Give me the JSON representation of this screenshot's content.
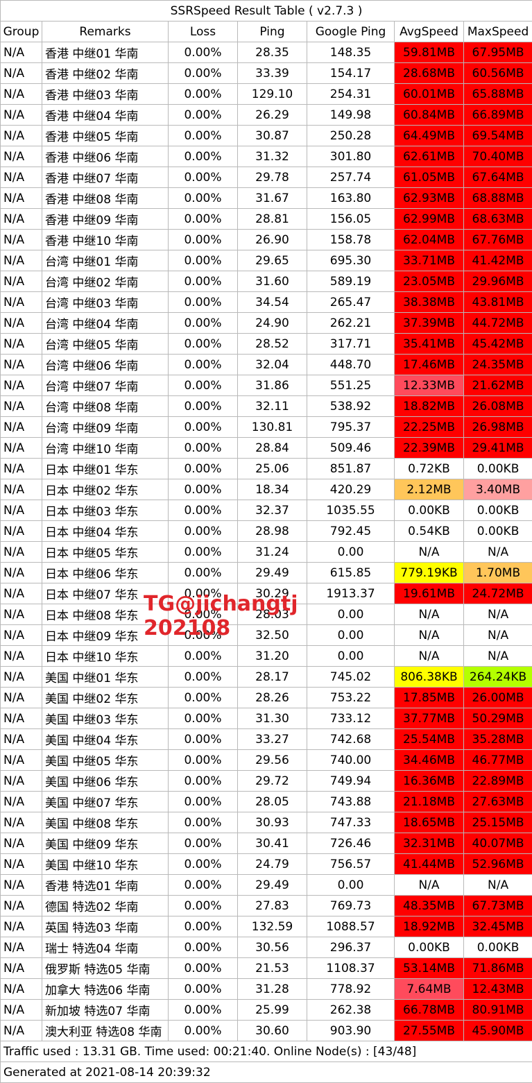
{
  "title": "SSRSpeed Result Table ( v2.7.3 )",
  "headers": [
    "Group",
    "Remarks",
    "Loss",
    "Ping",
    "Google Ping",
    "AvgSpeed",
    "MaxSpeed"
  ],
  "colors": {
    "fast_red": "#ff0000",
    "pink_red": "#ff4b5c",
    "salmon": "#ffa0a0",
    "orange": "#ffc65a",
    "yellow": "#ffff00",
    "lime": "#b4ff00",
    "watermark": "#e0262b",
    "border": "#b9b9b9"
  },
  "rows": [
    {
      "group": "N/A",
      "remarks": "香港 中继01 华南",
      "loss": "0.00%",
      "ping": "28.35",
      "gping": "148.35",
      "avg": "59.81MB",
      "avg_color": "#ff0000",
      "max": "67.95MB",
      "max_color": "#ff0000"
    },
    {
      "group": "N/A",
      "remarks": "香港 中继02 华南",
      "loss": "0.00%",
      "ping": "33.39",
      "gping": "154.17",
      "avg": "28.68MB",
      "avg_color": "#ff0000",
      "max": "60.56MB",
      "max_color": "#ff0000"
    },
    {
      "group": "N/A",
      "remarks": "香港 中继03 华南",
      "loss": "0.00%",
      "ping": "129.10",
      "gping": "254.31",
      "avg": "60.01MB",
      "avg_color": "#ff0000",
      "max": "65.88MB",
      "max_color": "#ff0000"
    },
    {
      "group": "N/A",
      "remarks": "香港 中继04 华南",
      "loss": "0.00%",
      "ping": "26.29",
      "gping": "149.98",
      "avg": "60.84MB",
      "avg_color": "#ff0000",
      "max": "66.89MB",
      "max_color": "#ff0000"
    },
    {
      "group": "N/A",
      "remarks": "香港 中继05 华南",
      "loss": "0.00%",
      "ping": "30.87",
      "gping": "250.28",
      "avg": "64.49MB",
      "avg_color": "#ff0000",
      "max": "69.54MB",
      "max_color": "#ff0000"
    },
    {
      "group": "N/A",
      "remarks": "香港 中继06 华南",
      "loss": "0.00%",
      "ping": "31.32",
      "gping": "301.80",
      "avg": "62.61MB",
      "avg_color": "#ff0000",
      "max": "70.40MB",
      "max_color": "#ff0000"
    },
    {
      "group": "N/A",
      "remarks": "香港 中继07 华南",
      "loss": "0.00%",
      "ping": "29.78",
      "gping": "257.74",
      "avg": "61.05MB",
      "avg_color": "#ff0000",
      "max": "67.64MB",
      "max_color": "#ff0000"
    },
    {
      "group": "N/A",
      "remarks": "香港 中继08 华南",
      "loss": "0.00%",
      "ping": "31.67",
      "gping": "163.80",
      "avg": "62.93MB",
      "avg_color": "#ff0000",
      "max": "68.88MB",
      "max_color": "#ff0000"
    },
    {
      "group": "N/A",
      "remarks": "香港 中继09 华南",
      "loss": "0.00%",
      "ping": "28.81",
      "gping": "156.05",
      "avg": "62.99MB",
      "avg_color": "#ff0000",
      "max": "68.63MB",
      "max_color": "#ff0000"
    },
    {
      "group": "N/A",
      "remarks": "香港 中继10 华南",
      "loss": "0.00%",
      "ping": "26.90",
      "gping": "158.78",
      "avg": "62.04MB",
      "avg_color": "#ff0000",
      "max": "67.76MB",
      "max_color": "#ff0000"
    },
    {
      "group": "N/A",
      "remarks": "台湾 中继01 华南",
      "loss": "0.00%",
      "ping": "29.65",
      "gping": "695.30",
      "avg": "33.71MB",
      "avg_color": "#ff0000",
      "max": "41.42MB",
      "max_color": "#ff0000"
    },
    {
      "group": "N/A",
      "remarks": "台湾 中继02 华南",
      "loss": "0.00%",
      "ping": "31.60",
      "gping": "589.19",
      "avg": "23.05MB",
      "avg_color": "#ff0000",
      "max": "29.96MB",
      "max_color": "#ff0000"
    },
    {
      "group": "N/A",
      "remarks": "台湾 中继03 华南",
      "loss": "0.00%",
      "ping": "34.54",
      "gping": "265.47",
      "avg": "38.38MB",
      "avg_color": "#ff0000",
      "max": "43.81MB",
      "max_color": "#ff0000"
    },
    {
      "group": "N/A",
      "remarks": "台湾 中继04 华南",
      "loss": "0.00%",
      "ping": "24.90",
      "gping": "262.21",
      "avg": "37.39MB",
      "avg_color": "#ff0000",
      "max": "44.72MB",
      "max_color": "#ff0000"
    },
    {
      "group": "N/A",
      "remarks": "台湾 中继05 华南",
      "loss": "0.00%",
      "ping": "28.52",
      "gping": "317.71",
      "avg": "35.41MB",
      "avg_color": "#ff0000",
      "max": "45.42MB",
      "max_color": "#ff0000"
    },
    {
      "group": "N/A",
      "remarks": "台湾 中继06 华南",
      "loss": "0.00%",
      "ping": "32.04",
      "gping": "448.70",
      "avg": "17.46MB",
      "avg_color": "#ff0000",
      "max": "24.35MB",
      "max_color": "#ff0000"
    },
    {
      "group": "N/A",
      "remarks": "台湾 中继07 华南",
      "loss": "0.00%",
      "ping": "31.86",
      "gping": "551.25",
      "avg": "12.33MB",
      "avg_color": "#ff4b5c",
      "max": "21.62MB",
      "max_color": "#ff0000"
    },
    {
      "group": "N/A",
      "remarks": "台湾 中继08 华南",
      "loss": "0.00%",
      "ping": "32.11",
      "gping": "538.92",
      "avg": "18.82MB",
      "avg_color": "#ff0000",
      "max": "26.08MB",
      "max_color": "#ff0000"
    },
    {
      "group": "N/A",
      "remarks": "台湾 中继09 华南",
      "loss": "0.00%",
      "ping": "130.81",
      "gping": "795.37",
      "avg": "22.25MB",
      "avg_color": "#ff0000",
      "max": "26.98MB",
      "max_color": "#ff0000"
    },
    {
      "group": "N/A",
      "remarks": "台湾 中继10 华南",
      "loss": "0.00%",
      "ping": "28.84",
      "gping": "509.46",
      "avg": "22.39MB",
      "avg_color": "#ff0000",
      "max": "29.41MB",
      "max_color": "#ff0000"
    },
    {
      "group": "N/A",
      "remarks": "日本 中继01 华东",
      "loss": "0.00%",
      "ping": "25.06",
      "gping": "851.87",
      "avg": "0.72KB",
      "avg_color": "",
      "max": "0.00KB",
      "max_color": ""
    },
    {
      "group": "N/A",
      "remarks": "日本 中继02 华东",
      "loss": "0.00%",
      "ping": "18.34",
      "gping": "420.29",
      "avg": "2.12MB",
      "avg_color": "#ffc65a",
      "max": "3.40MB",
      "max_color": "#ffa0a0"
    },
    {
      "group": "N/A",
      "remarks": "日本 中继03 华东",
      "loss": "0.00%",
      "ping": "32.37",
      "gping": "1035.55",
      "avg": "0.00KB",
      "avg_color": "",
      "max": "0.00KB",
      "max_color": ""
    },
    {
      "group": "N/A",
      "remarks": "日本 中继04 华东",
      "loss": "0.00%",
      "ping": "28.98",
      "gping": "792.45",
      "avg": "0.54KB",
      "avg_color": "",
      "max": "0.00KB",
      "max_color": ""
    },
    {
      "group": "N/A",
      "remarks": "日本 中继05 华东",
      "loss": "0.00%",
      "ping": "31.24",
      "gping": "0.00",
      "avg": "N/A",
      "avg_color": "",
      "max": "N/A",
      "max_color": ""
    },
    {
      "group": "N/A",
      "remarks": "日本 中继06 华东",
      "loss": "0.00%",
      "ping": "29.49",
      "gping": "615.85",
      "avg": "779.19KB",
      "avg_color": "#ffff00",
      "max": "1.70MB",
      "max_color": "#ffc65a"
    },
    {
      "group": "N/A",
      "remarks": "日本 中继07 华东",
      "loss": "0.00%",
      "ping": "30.29",
      "gping": "1913.37",
      "avg": "19.61MB",
      "avg_color": "#ff0000",
      "max": "24.72MB",
      "max_color": "#ff0000"
    },
    {
      "group": "N/A",
      "remarks": "日本 中继08 华东",
      "loss": "0.00%",
      "ping": "28.03",
      "gping": "0.00",
      "avg": "N/A",
      "avg_color": "",
      "max": "N/A",
      "max_color": ""
    },
    {
      "group": "N/A",
      "remarks": "日本 中继09 华东",
      "loss": "0.00%",
      "ping": "32.50",
      "gping": "0.00",
      "avg": "N/A",
      "avg_color": "",
      "max": "N/A",
      "max_color": ""
    },
    {
      "group": "N/A",
      "remarks": "日本 中继10 华东",
      "loss": "0.00%",
      "ping": "31.20",
      "gping": "0.00",
      "avg": "N/A",
      "avg_color": "",
      "max": "N/A",
      "max_color": ""
    },
    {
      "group": "N/A",
      "remarks": "美国 中继01 华东",
      "loss": "0.00%",
      "ping": "28.17",
      "gping": "745.02",
      "avg": "806.38KB",
      "avg_color": "#ffff00",
      "max": "264.24KB",
      "max_color": "#b4ff00"
    },
    {
      "group": "N/A",
      "remarks": "美国 中继02 华东",
      "loss": "0.00%",
      "ping": "28.26",
      "gping": "753.22",
      "avg": "17.85MB",
      "avg_color": "#ff0000",
      "max": "26.00MB",
      "max_color": "#ff0000"
    },
    {
      "group": "N/A",
      "remarks": "美国 中继03 华东",
      "loss": "0.00%",
      "ping": "31.30",
      "gping": "733.12",
      "avg": "37.77MB",
      "avg_color": "#ff0000",
      "max": "50.29MB",
      "max_color": "#ff0000"
    },
    {
      "group": "N/A",
      "remarks": "美国 中继04 华东",
      "loss": "0.00%",
      "ping": "33.27",
      "gping": "742.68",
      "avg": "25.54MB",
      "avg_color": "#ff0000",
      "max": "35.28MB",
      "max_color": "#ff0000"
    },
    {
      "group": "N/A",
      "remarks": "美国 中继05 华东",
      "loss": "0.00%",
      "ping": "29.56",
      "gping": "740.00",
      "avg": "34.46MB",
      "avg_color": "#ff0000",
      "max": "46.77MB",
      "max_color": "#ff0000"
    },
    {
      "group": "N/A",
      "remarks": "美国 中继06 华东",
      "loss": "0.00%",
      "ping": "29.72",
      "gping": "749.94",
      "avg": "16.36MB",
      "avg_color": "#ff0000",
      "max": "22.89MB",
      "max_color": "#ff0000"
    },
    {
      "group": "N/A",
      "remarks": "美国 中继07 华东",
      "loss": "0.00%",
      "ping": "28.05",
      "gping": "743.88",
      "avg": "21.18MB",
      "avg_color": "#ff0000",
      "max": "27.63MB",
      "max_color": "#ff0000"
    },
    {
      "group": "N/A",
      "remarks": "美国 中继08 华东",
      "loss": "0.00%",
      "ping": "30.93",
      "gping": "747.33",
      "avg": "18.65MB",
      "avg_color": "#ff0000",
      "max": "25.15MB",
      "max_color": "#ff0000"
    },
    {
      "group": "N/A",
      "remarks": "美国 中继09 华东",
      "loss": "0.00%",
      "ping": "30.41",
      "gping": "726.46",
      "avg": "32.31MB",
      "avg_color": "#ff0000",
      "max": "40.07MB",
      "max_color": "#ff0000"
    },
    {
      "group": "N/A",
      "remarks": "美国 中继10 华东",
      "loss": "0.00%",
      "ping": "24.79",
      "gping": "756.57",
      "avg": "41.44MB",
      "avg_color": "#ff0000",
      "max": "52.96MB",
      "max_color": "#ff0000"
    },
    {
      "group": "N/A",
      "remarks": "香港 特选01 华南",
      "loss": "0.00%",
      "ping": "29.49",
      "gping": "0.00",
      "avg": "N/A",
      "avg_color": "",
      "max": "N/A",
      "max_color": ""
    },
    {
      "group": "N/A",
      "remarks": "德国 特选02 华南",
      "loss": "0.00%",
      "ping": "27.83",
      "gping": "769.73",
      "avg": "48.35MB",
      "avg_color": "#ff0000",
      "max": "67.73MB",
      "max_color": "#ff0000"
    },
    {
      "group": "N/A",
      "remarks": "英国 特选03 华南",
      "loss": "0.00%",
      "ping": "132.59",
      "gping": "1088.57",
      "avg": "18.92MB",
      "avg_color": "#ff0000",
      "max": "32.45MB",
      "max_color": "#ff0000"
    },
    {
      "group": "N/A",
      "remarks": "瑞士 特选04 华南",
      "loss": "0.00%",
      "ping": "30.56",
      "gping": "296.37",
      "avg": "0.00KB",
      "avg_color": "",
      "max": "0.00KB",
      "max_color": ""
    },
    {
      "group": "N/A",
      "remarks": "俄罗斯 特选05 华南",
      "loss": "0.00%",
      "ping": "21.53",
      "gping": "1108.37",
      "avg": "53.14MB",
      "avg_color": "#ff0000",
      "max": "71.86MB",
      "max_color": "#ff0000"
    },
    {
      "group": "N/A",
      "remarks": "加拿大 特选06 华南",
      "loss": "0.00%",
      "ping": "31.28",
      "gping": "778.92",
      "avg": "7.64MB",
      "avg_color": "#ff4b5c",
      "max": "12.43MB",
      "max_color": "#ff0000"
    },
    {
      "group": "N/A",
      "remarks": "新加坡 特选07 华南",
      "loss": "0.00%",
      "ping": "25.99",
      "gping": "262.38",
      "avg": "66.78MB",
      "avg_color": "#ff0000",
      "max": "80.91MB",
      "max_color": "#ff0000"
    },
    {
      "group": "N/A",
      "remarks": "澳大利亚 特选08 华南",
      "loss": "0.00%",
      "ping": "30.60",
      "gping": "903.90",
      "avg": "27.55MB",
      "avg_color": "#ff0000",
      "max": "45.90MB",
      "max_color": "#ff0000"
    }
  ],
  "footer": {
    "traffic": "Traffic used : 13.31 GB. Time used: 00:21:40. Online Node(s) : [43/48]",
    "generated": "Generated at 2021-08-14 20:39:32"
  },
  "watermark": {
    "line1": "TG@jichangtj",
    "line2": "202108"
  }
}
